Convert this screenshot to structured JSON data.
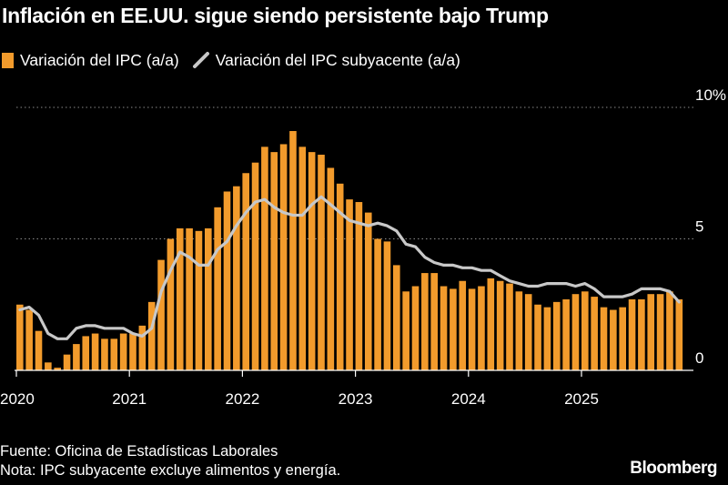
{
  "header": {
    "title": "Inflación en EE.UU. sigue siendo persistente bajo Trump"
  },
  "legend": {
    "bar_label": "Variación del IPC (a/a)",
    "line_label": "Variación del IPC subyacente (a/a)"
  },
  "footer": {
    "source": "Fuente: Oficina de Estadísticas Laborales",
    "note": "Nota: IPC subyacente excluye alimentos y energía.",
    "brand": "Bloomberg"
  },
  "colors": {
    "bars": "#f29b2c",
    "line": "#c8c8c8",
    "grid": "#8a8a8a",
    "background": "#000000"
  },
  "chart_data": {
    "type": "bar",
    "x_start": "2020-01",
    "x_interval": "month",
    "ylim": [
      0,
      10
    ],
    "y_ticks": [
      "0",
      "5",
      "10%"
    ],
    "x_ticks": [
      "2020",
      "2021",
      "2022",
      "2023",
      "2024",
      "2025"
    ],
    "grid": "dotted horizontal at 5 and 10",
    "legend_position": "top-left",
    "series": [
      {
        "name": "Variación del IPC (a/a)",
        "type": "bar",
        "values": [
          2.5,
          2.3,
          1.5,
          0.3,
          0.1,
          0.6,
          1.0,
          1.3,
          1.4,
          1.2,
          1.2,
          1.4,
          1.4,
          1.7,
          2.6,
          4.2,
          5.0,
          5.4,
          5.4,
          5.3,
          5.4,
          6.2,
          6.8,
          7.0,
          7.5,
          7.9,
          8.5,
          8.3,
          8.6,
          9.1,
          8.5,
          8.3,
          8.2,
          7.7,
          7.1,
          6.5,
          6.4,
          6.0,
          5.0,
          4.9,
          4.0,
          3.0,
          3.2,
          3.7,
          3.7,
          3.2,
          3.1,
          3.4,
          3.1,
          3.2,
          3.5,
          3.4,
          3.3,
          3.0,
          2.9,
          2.5,
          2.4,
          2.6,
          2.7,
          2.9,
          3.0,
          2.8,
          2.4,
          2.3,
          2.4,
          2.7,
          2.7,
          2.9,
          2.9,
          3.0,
          2.7
        ]
      },
      {
        "name": "Variación del IPC subyacente (a/a)",
        "type": "line",
        "values": [
          2.3,
          2.4,
          2.1,
          1.4,
          1.2,
          1.2,
          1.6,
          1.7,
          1.7,
          1.6,
          1.6,
          1.6,
          1.4,
          1.3,
          1.6,
          3.0,
          3.8,
          4.5,
          4.3,
          4.0,
          4.0,
          4.6,
          4.9,
          5.5,
          6.0,
          6.4,
          6.5,
          6.2,
          6.0,
          5.9,
          5.9,
          6.3,
          6.6,
          6.3,
          6.0,
          5.7,
          5.6,
          5.5,
          5.6,
          5.5,
          5.3,
          4.8,
          4.7,
          4.3,
          4.1,
          4.0,
          4.0,
          3.9,
          3.9,
          3.8,
          3.8,
          3.6,
          3.4,
          3.3,
          3.2,
          3.2,
          3.3,
          3.3,
          3.3,
          3.2,
          3.3,
          3.1,
          2.8,
          2.8,
          2.8,
          2.9,
          3.1,
          3.1,
          3.1,
          3.0,
          2.6
        ]
      }
    ]
  }
}
